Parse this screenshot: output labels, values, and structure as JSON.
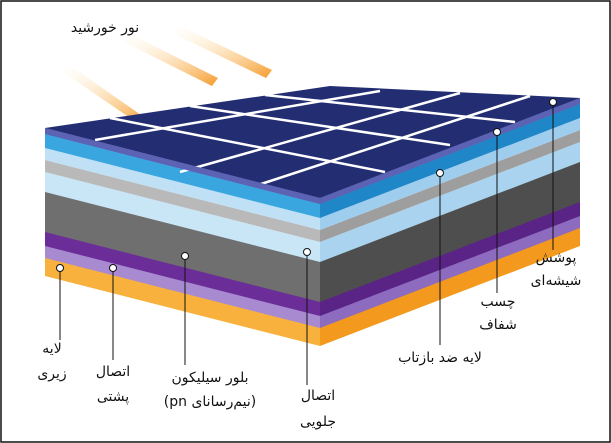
{
  "title": "نور خورشید",
  "labels": [
    {
      "lines": [
        "پوشش",
        "شیشه‌ای"
      ]
    },
    {
      "lines": [
        "چسب",
        "شفاف"
      ]
    },
    {
      "lines": [
        "لایه ضد بازتاب"
      ]
    },
    {
      "lines": [
        "اتصال",
        "جلویی"
      ]
    },
    {
      "lines": [
        "بلور سیلیکون",
        "(نیم‌رسانای pn)"
      ]
    },
    {
      "lines": [
        "اتصال",
        "پشتی"
      ]
    },
    {
      "lines": [
        "لایه",
        "زیری"
      ]
    }
  ]
}
